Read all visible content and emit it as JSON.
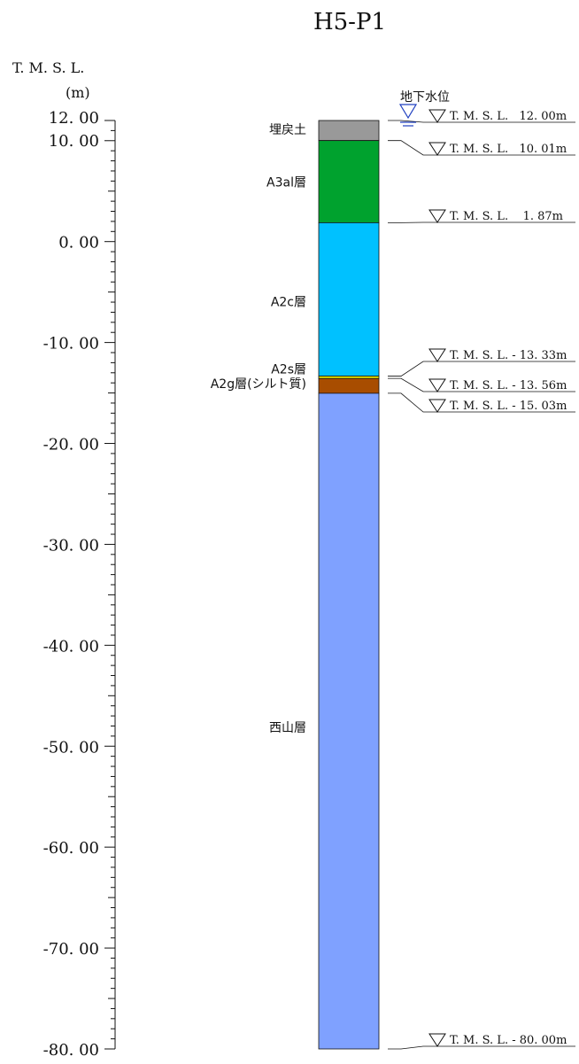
{
  "title": "H5-P1",
  "axis": {
    "label_line1": "T. M. S. L.",
    "label_line2": "(m)",
    "min": -80,
    "max": 12,
    "ticks": [
      {
        "value": 12,
        "label": "12. 00"
      },
      {
        "value": 10,
        "label": "10. 00"
      },
      {
        "value": 0,
        "label": "0. 00"
      },
      {
        "value": -10,
        "label": "-10. 00"
      },
      {
        "value": -20,
        "label": "-20. 00"
      },
      {
        "value": -30,
        "label": "-30. 00"
      },
      {
        "value": -40,
        "label": "-40. 00"
      },
      {
        "value": -50,
        "label": "-50. 00"
      },
      {
        "value": -60,
        "label": "-60. 00"
      },
      {
        "value": -70,
        "label": "-70. 00"
      },
      {
        "value": -80,
        "label": "-80. 00"
      }
    ],
    "minor_tick_interval": 1
  },
  "water_level": {
    "label": "地下水位",
    "color": "#2040c0"
  },
  "layers": [
    {
      "name": "埋戻土",
      "top": 12.0,
      "bottom": 10.01,
      "color": "#999999"
    },
    {
      "name": "A3al層",
      "top": 10.01,
      "bottom": 1.87,
      "color": "#00a22e"
    },
    {
      "name": "A2c層",
      "top": 1.87,
      "bottom": -13.33,
      "color": "#00c1ff"
    },
    {
      "name": "A2s層",
      "top": -13.33,
      "bottom": -13.56,
      "color": "#f5f500"
    },
    {
      "name": "A2g層(シルト質)",
      "top": -13.56,
      "bottom": -15.03,
      "color": "#a84d00"
    },
    {
      "name": "西山層",
      "top": -15.03,
      "bottom": -80.0,
      "color": "#7fa1ff"
    }
  ],
  "boundaries": [
    {
      "value": 12.0,
      "label": "T. M. S. L.   12. 00m"
    },
    {
      "value": 10.01,
      "label": "T. M. S. L.   10. 01m"
    },
    {
      "value": 1.87,
      "label": "T. M. S. L.    1. 87m"
    },
    {
      "value": -13.33,
      "label": "T. M. S. L. - 13. 33m"
    },
    {
      "value": -13.56,
      "label": "T. M. S. L. - 13. 56m"
    },
    {
      "value": -15.03,
      "label": "T. M. S. L. - 15. 03m"
    },
    {
      "value": -80.0,
      "label": "T. M. S. L. - 80. 00m"
    }
  ]
}
